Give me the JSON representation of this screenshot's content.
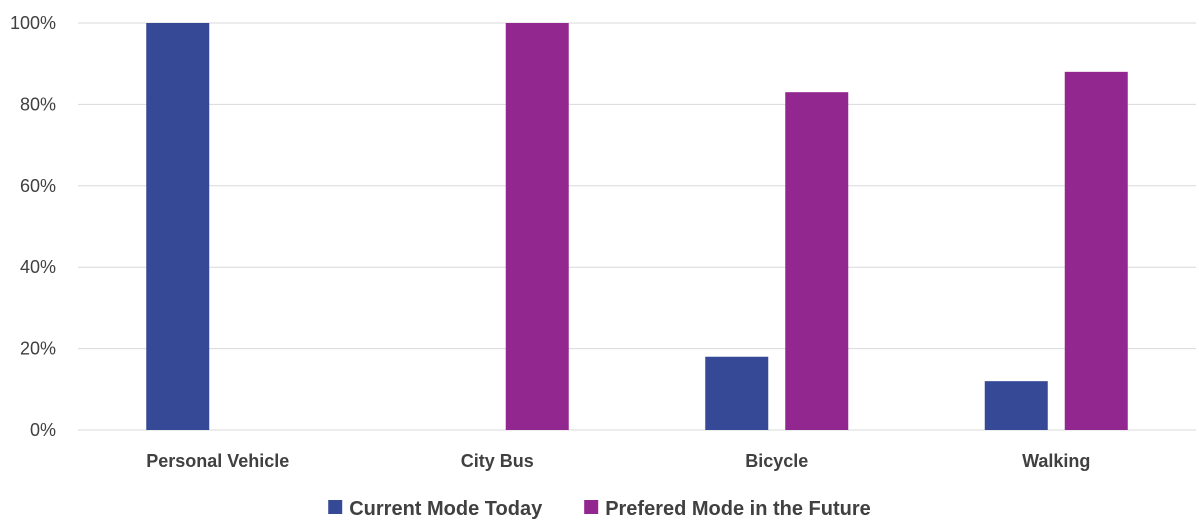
{
  "chart_data": {
    "type": "bar",
    "title": "",
    "xlabel": "",
    "ylabel": "",
    "categories": [
      "Personal Vehicle",
      "City Bus",
      "Bicycle",
      "Walking"
    ],
    "series": [
      {
        "name": "Current Mode Today",
        "color": "#364996",
        "values": [
          100,
          0,
          18,
          12
        ]
      },
      {
        "name": "Prefered Mode in the Future",
        "color": "#92278f",
        "values": [
          0,
          100,
          83,
          88
        ]
      }
    ],
    "ylim": [
      0,
      100
    ],
    "yticks": [
      0,
      20,
      40,
      60,
      80,
      100
    ],
    "ytick_labels": [
      "0%",
      "20%",
      "40%",
      "60%",
      "80%",
      "100%"
    ],
    "grid": true,
    "legend_position": "bottom"
  }
}
